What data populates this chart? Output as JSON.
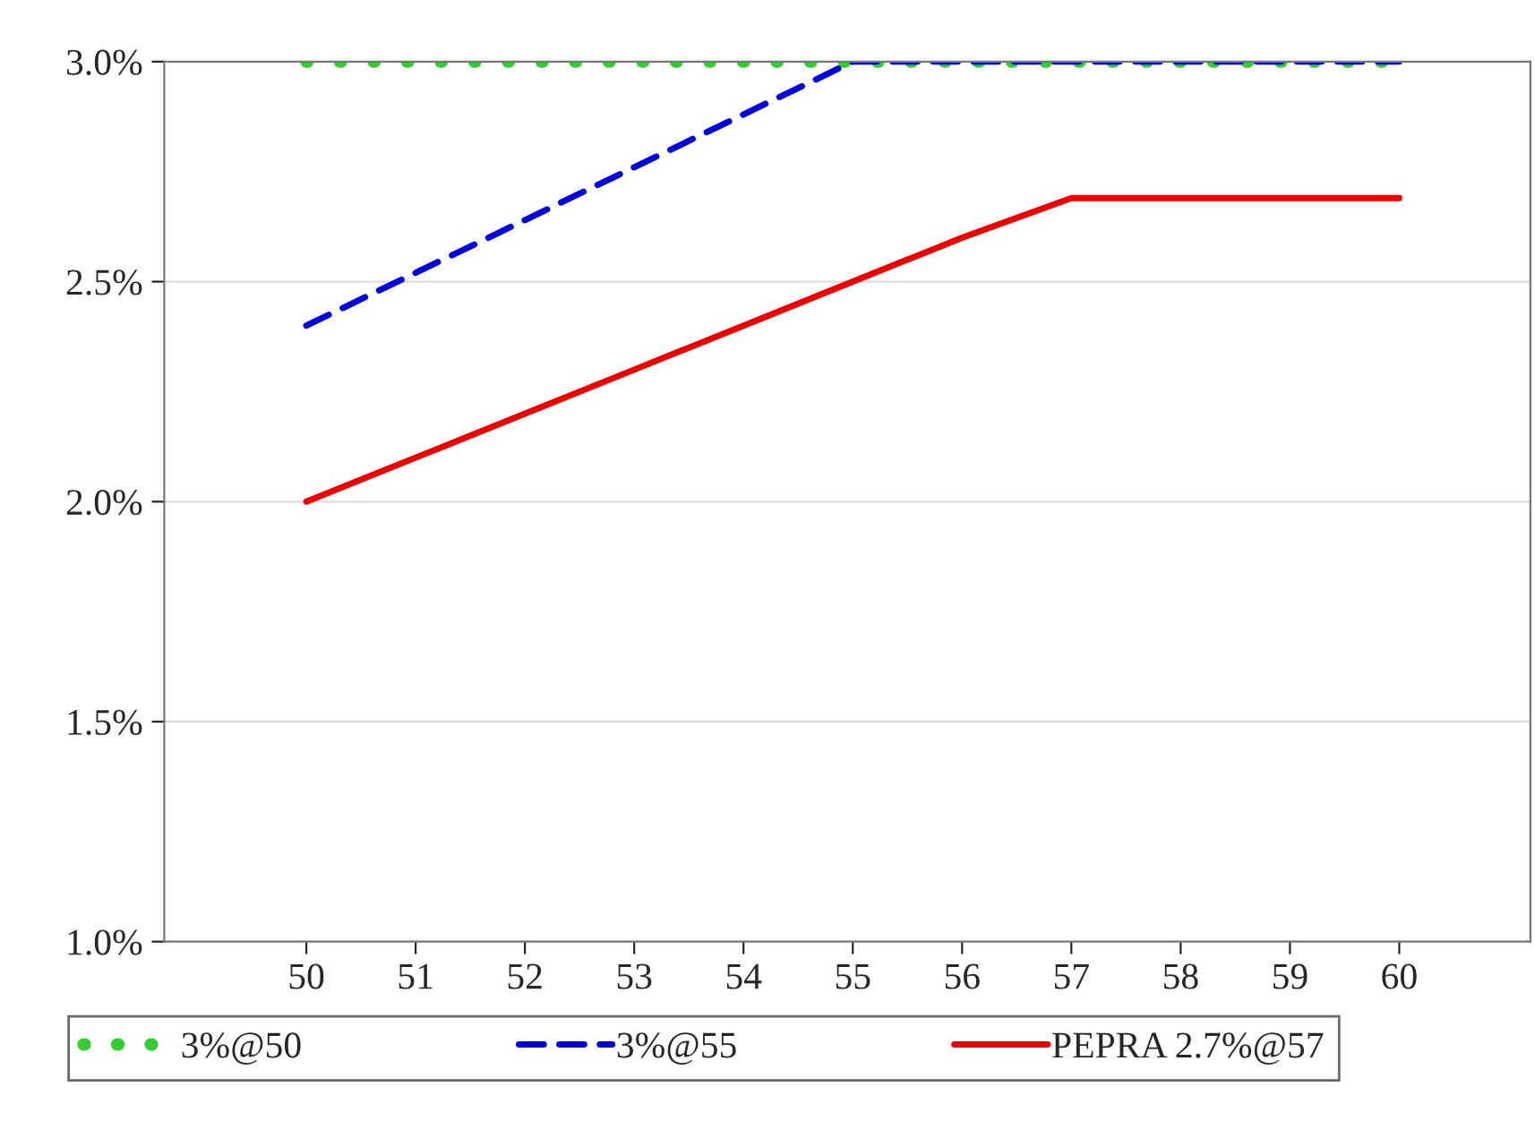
{
  "chart_data": {
    "type": "line",
    "categories": [
      "50",
      "51",
      "52",
      "53",
      "54",
      "55",
      "56",
      "57",
      "58",
      "59",
      "60"
    ],
    "series": [
      {
        "name": "3%@50",
        "color": "#33cc33",
        "line_style": "dotted",
        "values": [
          3.0,
          3.0,
          3.0,
          3.0,
          3.0,
          3.0,
          3.0,
          3.0,
          3.0,
          3.0,
          3.0
        ]
      },
      {
        "name": "3%@55",
        "color": "#0000dd",
        "line_style": "dashed",
        "values": [
          2.4,
          2.52,
          2.64,
          2.76,
          2.88,
          3.0,
          3.0,
          3.0,
          3.0,
          3.0,
          3.0
        ]
      },
      {
        "name": "PEPRA 2.7%@57",
        "color": "#ee0000",
        "line_style": "solid",
        "values": [
          2.0,
          2.1,
          2.2,
          2.3,
          2.4,
          2.5,
          2.6,
          2.69,
          2.69,
          2.69,
          2.69
        ]
      }
    ],
    "ylim": [
      1.0,
      3.0
    ],
    "yticks": [
      {
        "value": 1.0,
        "label": "1.0%"
      },
      {
        "value": 1.5,
        "label": "1.5%"
      },
      {
        "value": 2.0,
        "label": "2.0%"
      },
      {
        "value": 2.5,
        "label": "2.5%"
      },
      {
        "value": 3.0,
        "label": "3.0%"
      }
    ],
    "grid": "y",
    "legend": "bottom",
    "marker": "none"
  }
}
